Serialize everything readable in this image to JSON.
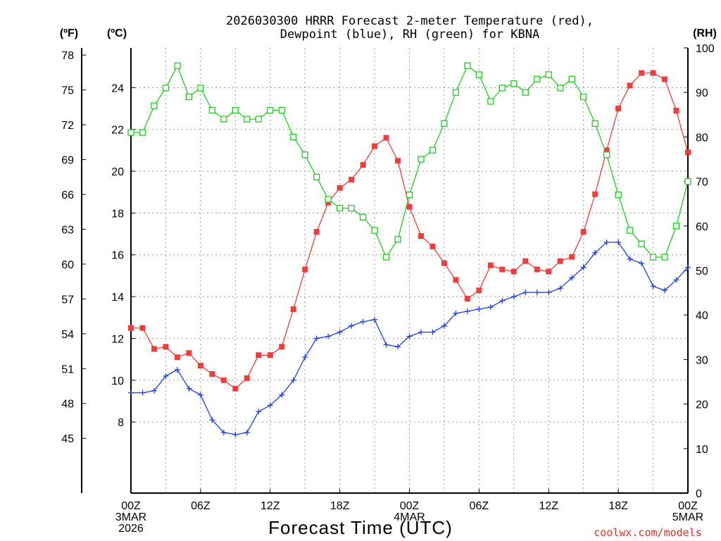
{
  "chart_data": {
    "type": "line",
    "title": "2026030300 HRRR Forecast 2-meter Temperature (red),",
    "subtitle": "Dewpoint (blue), RH (green) for KBNA",
    "xlabel": "Forecast Time (UTC)",
    "credit": "coolwx.com/models",
    "y_left_outer_label": "(ºF)",
    "y_left_inner_label": "(ºC)",
    "y_right_label": "(RH)",
    "x_range_hours": [
      0,
      48
    ],
    "celsius_range": [
      4.6,
      25.9
    ],
    "rh_range": [
      0,
      100
    ],
    "fahrenheit_ticks": [
      "45",
      "48",
      "51",
      "54",
      "57",
      "60",
      "63",
      "66",
      "69",
      "72",
      "75",
      "78"
    ],
    "celsius_ticks": [
      "8",
      "10",
      "12",
      "14",
      "16",
      "18",
      "20",
      "22",
      "24"
    ],
    "rh_ticks": [
      "0",
      "10",
      "20",
      "30",
      "40",
      "50",
      "60",
      "70",
      "80",
      "90",
      "100"
    ],
    "x_ticks": [
      {
        "hour": 0,
        "lines": [
          "00Z",
          "3MAR",
          "2026"
        ]
      },
      {
        "hour": 6,
        "lines": [
          "06Z"
        ]
      },
      {
        "hour": 12,
        "lines": [
          "12Z"
        ]
      },
      {
        "hour": 18,
        "lines": [
          "18Z"
        ]
      },
      {
        "hour": 24,
        "lines": [
          "00Z",
          "4MAR"
        ]
      },
      {
        "hour": 30,
        "lines": [
          "06Z"
        ]
      },
      {
        "hour": 36,
        "lines": [
          "12Z"
        ]
      },
      {
        "hour": 42,
        "lines": [
          "18Z"
        ]
      },
      {
        "hour": 48,
        "lines": [
          "00Z",
          "5MAR"
        ]
      }
    ],
    "series": [
      {
        "name": "Temperature",
        "unit": "C",
        "color": "#f03c3c",
        "marker": "filled-square",
        "values": [
          12.5,
          12.5,
          11.5,
          11.6,
          11.1,
          11.3,
          10.7,
          10.3,
          10.0,
          9.6,
          10.1,
          11.2,
          11.2,
          11.6,
          13.4,
          15.3,
          17.1,
          18.5,
          19.2,
          19.6,
          20.3,
          21.2,
          21.6,
          20.5,
          18.3,
          16.9,
          16.4,
          15.6,
          14.8,
          13.9,
          14.3,
          15.5,
          15.3,
          15.2,
          15.7,
          15.3,
          15.2,
          15.7,
          15.9,
          17.1,
          18.9,
          21.0,
          23.0,
          24.1,
          24.7,
          24.7,
          24.4,
          22.9,
          20.9
        ]
      },
      {
        "name": "Dewpoint",
        "unit": "C",
        "color": "#2040e0",
        "marker": "plus",
        "values": [
          9.4,
          9.4,
          9.5,
          10.2,
          10.5,
          9.6,
          9.3,
          8.1,
          7.5,
          7.4,
          7.5,
          8.5,
          8.8,
          9.3,
          10.0,
          11.1,
          12.0,
          12.1,
          12.3,
          12.6,
          12.8,
          12.9,
          11.7,
          11.6,
          12.1,
          12.3,
          12.3,
          12.6,
          13.2,
          13.3,
          13.4,
          13.5,
          13.8,
          14.0,
          14.2,
          14.2,
          14.2,
          14.4,
          14.9,
          15.4,
          16.1,
          16.6,
          16.6,
          15.8,
          15.6,
          14.5,
          14.3,
          14.8,
          15.4
        ]
      },
      {
        "name": "RH",
        "unit": "%",
        "color": "#22cc22",
        "marker": "open-square",
        "values": [
          81,
          81,
          87,
          91,
          96,
          89,
          91,
          86,
          84,
          86,
          84,
          84,
          86,
          86,
          80,
          76,
          71,
          66,
          64,
          64,
          62,
          59,
          53,
          57,
          67,
          75,
          77,
          83,
          90,
          96,
          94,
          88,
          91,
          92,
          90,
          93,
          94,
          91,
          93,
          89,
          83,
          76,
          67,
          59,
          56,
          53,
          53,
          60,
          70
        ]
      }
    ]
  }
}
